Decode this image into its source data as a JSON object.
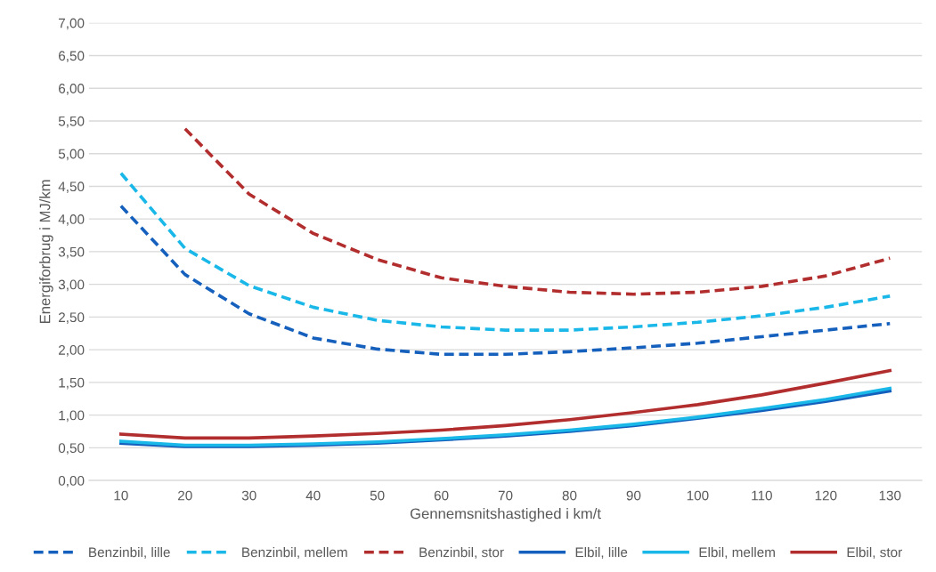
{
  "chart_data": {
    "type": "line",
    "xlabel": "Gennemsnitshastighed i km/t",
    "ylabel": "Energiforbrug i MJ/km",
    "categories": [
      "10",
      "20",
      "30",
      "40",
      "50",
      "60",
      "70",
      "80",
      "90",
      "100",
      "110",
      "120",
      "130"
    ],
    "series": [
      {
        "name": "Benzinbil, lille",
        "color": "#1560bd",
        "line_style": "dashed",
        "values": [
          4.2,
          3.15,
          2.55,
          2.18,
          2.01,
          1.93,
          1.93,
          1.97,
          2.03,
          2.1,
          2.2,
          2.3,
          2.4
        ]
      },
      {
        "name": "Benzinbil, mellem",
        "color": "#1ab8e8",
        "line_style": "dashed",
        "values": [
          4.7,
          3.55,
          2.98,
          2.65,
          2.45,
          2.35,
          2.3,
          2.3,
          2.35,
          2.42,
          2.52,
          2.65,
          2.82
        ]
      },
      {
        "name": "Benzinbil, stor",
        "color": "#b22e2e",
        "line_style": "dashed",
        "values": [
          null,
          5.38,
          4.38,
          3.78,
          3.38,
          3.1,
          2.97,
          2.88,
          2.85,
          2.88,
          2.97,
          3.13,
          3.4
        ]
      },
      {
        "name": "Elbil, lille",
        "color": "#1560bd",
        "line_style": "solid",
        "values": [
          0.57,
          0.52,
          0.52,
          0.54,
          0.57,
          0.62,
          0.68,
          0.75,
          0.84,
          0.95,
          1.07,
          1.21,
          1.37
        ]
      },
      {
        "name": "Elbil, mellem",
        "color": "#1ab8e8",
        "line_style": "solid",
        "values": [
          0.6,
          0.54,
          0.54,
          0.56,
          0.59,
          0.64,
          0.7,
          0.77,
          0.86,
          0.97,
          1.1,
          1.24,
          1.41
        ]
      },
      {
        "name": "Elbil, stor",
        "color": "#b22e2e",
        "line_style": "solid",
        "values": [
          0.71,
          0.65,
          0.65,
          0.68,
          0.72,
          0.77,
          0.84,
          0.93,
          1.04,
          1.16,
          1.31,
          1.49,
          1.68
        ]
      }
    ],
    "ylim": [
      0,
      7
    ],
    "yticks": [
      {
        "value": 0,
        "label": "0,00"
      },
      {
        "value": 0.5,
        "label": "0,50"
      },
      {
        "value": 1,
        "label": "1,00"
      },
      {
        "value": 1.5,
        "label": "1,50"
      },
      {
        "value": 2,
        "label": "2,00"
      },
      {
        "value": 2.5,
        "label": "2,50"
      },
      {
        "value": 3,
        "label": "3,00"
      },
      {
        "value": 3.5,
        "label": "3,50"
      },
      {
        "value": 4,
        "label": "4,00"
      },
      {
        "value": 4.5,
        "label": "4,50"
      },
      {
        "value": 5,
        "label": "5,00"
      },
      {
        "value": 5.5,
        "label": "5,50"
      },
      {
        "value": 6,
        "label": "6,00"
      },
      {
        "value": 6.5,
        "label": "6,50"
      },
      {
        "value": 7,
        "label": "7,00"
      }
    ],
    "grid": "y",
    "legend": "bottom",
    "marker": "none"
  }
}
